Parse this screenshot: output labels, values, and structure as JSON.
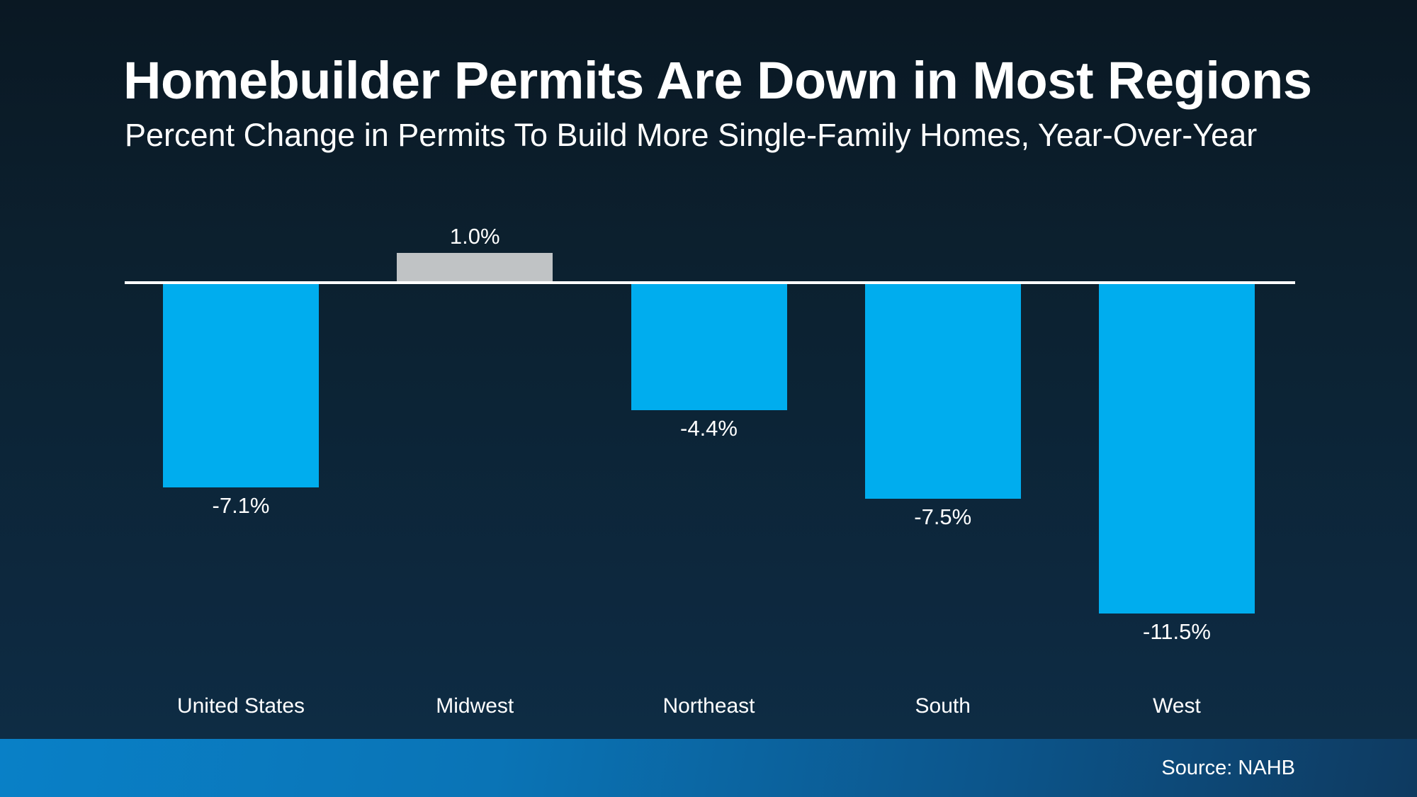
{
  "title": "Homebuilder Permits Are Down in Most Regions",
  "subtitle": "Percent Change in Permits To Build More Single-Family Homes, Year-Over-Year",
  "footer": {
    "source_label": "Source: NAHB"
  },
  "colors": {
    "background_top": "#0a1823",
    "background_bottom": "#0e2e46",
    "bar_blue": "#00adee",
    "bar_gray": "#c0c3c5",
    "axis_line": "#ffffff",
    "text": "#ffffff",
    "footer_left": "#0980c7",
    "footer_right": "#0e3a60"
  },
  "chart_data": {
    "type": "bar",
    "categories": [
      "United States",
      "Midwest",
      "Northeast",
      "South",
      "West"
    ],
    "values": [
      -7.1,
      1.0,
      -4.4,
      -7.5,
      -11.5
    ],
    "value_labels": [
      "-7.1%",
      "1.0%",
      "-4.4%",
      "-7.5%",
      "-11.5%"
    ],
    "bar_colors": [
      "#00adee",
      "#c0c3c5",
      "#00adee",
      "#00adee",
      "#00adee"
    ],
    "title": "Homebuilder Permits Are Down in Most Regions",
    "subtitle": "Percent Change in Permits To Build More Single-Family Homes, Year-Over-Year",
    "xlabel": "",
    "ylabel": "",
    "baseline": 0,
    "grid": false,
    "legend": false,
    "value_label_position": "outside-end",
    "source": "Source: NAHB"
  }
}
